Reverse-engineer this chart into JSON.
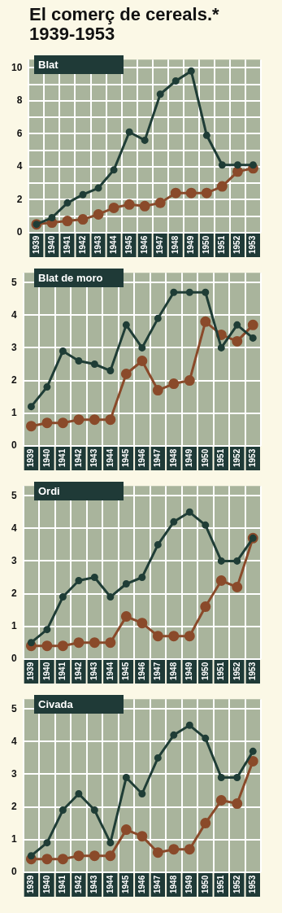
{
  "chart_data": [
    {
      "type": "line",
      "title": "El comerç de cereals.* 1939-1953",
      "subtitle": "Blat",
      "categories": [
        "1939",
        "1940",
        "1941",
        "1942",
        "1943",
        "1944",
        "1945",
        "1946",
        "1947",
        "1948",
        "1949",
        "1950",
        "1951",
        "1952",
        "1953"
      ],
      "series": [
        {
          "color": "#1f3d36",
          "values": [
            0.5,
            0.9,
            1.8,
            2.3,
            2.7,
            3.8,
            6.1,
            5.6,
            8.4,
            9.2,
            9.8,
            5.9,
            4.1,
            4.1,
            4.1
          ]
        },
        {
          "color": "#8a4a2a",
          "values": [
            0.5,
            0.6,
            0.7,
            0.8,
            1.1,
            1.5,
            1.7,
            1.6,
            1.8,
            2.4,
            2.4,
            2.4,
            2.8,
            3.7,
            3.9
          ]
        }
      ],
      "ylim": [
        0,
        10.5
      ],
      "yticks": [
        0,
        {
          "value": 1,
          "label": null
        },
        2,
        {
          "value": 3,
          "label": null
        },
        4,
        {
          "value": 5,
          "label": null
        },
        6,
        {
          "value": 7,
          "label": null
        },
        8,
        {
          "value": 9,
          "label": null
        },
        10
      ],
      "grid": true,
      "marker": "circle"
    },
    {
      "type": "line",
      "subtitle": "Blat de moro",
      "categories": [
        "1939",
        "1940",
        "1941",
        "1942",
        "1943",
        "1944",
        "1945",
        "1946",
        "1947",
        "1948",
        "1949",
        "1950",
        "1951",
        "1952",
        "1953"
      ],
      "series": [
        {
          "color": "#1f3d36",
          "values": [
            1.2,
            1.8,
            2.9,
            2.6,
            2.5,
            2.3,
            3.7,
            3.0,
            3.9,
            4.7,
            4.7,
            4.7,
            3.0,
            3.7,
            3.3
          ]
        },
        {
          "color": "#8a4a2a",
          "values": [
            0.6,
            0.7,
            0.7,
            0.8,
            0.8,
            0.8,
            2.2,
            2.6,
            1.7,
            1.9,
            2.0,
            3.8,
            3.4,
            3.2,
            3.7
          ]
        }
      ],
      "ylim": [
        0,
        5.3
      ],
      "yticks": [
        0,
        1,
        2,
        3,
        4,
        5
      ],
      "grid": true,
      "marker": "circle"
    },
    {
      "type": "line",
      "subtitle": "Ordi",
      "categories": [
        "1939",
        "1940",
        "1941",
        "1942",
        "1943",
        "1944",
        "1945",
        "1946",
        "1947",
        "1948",
        "1949",
        "1950",
        "1951",
        "1952",
        "1953"
      ],
      "series": [
        {
          "color": "#1f3d36",
          "values": [
            0.5,
            0.9,
            1.9,
            2.4,
            2.5,
            1.9,
            2.3,
            2.5,
            3.5,
            4.2,
            4.5,
            4.1,
            3.0,
            3.0,
            3.7
          ]
        },
        {
          "color": "#8a4a2a",
          "values": [
            0.4,
            0.4,
            0.4,
            0.5,
            0.5,
            0.5,
            1.3,
            1.1,
            0.7,
            0.7,
            0.7,
            1.6,
            2.4,
            2.2,
            3.7
          ]
        }
      ],
      "ylim": [
        0,
        5.3
      ],
      "yticks": [
        0,
        1,
        2,
        3,
        4,
        5
      ],
      "grid": true,
      "marker": "circle"
    },
    {
      "type": "line",
      "subtitle": "Civada",
      "categories": [
        "1939",
        "1940",
        "1941",
        "1942",
        "1943",
        "1944",
        "1945",
        "1946",
        "1947",
        "1948",
        "1949",
        "1950",
        "1951",
        "1952",
        "1953"
      ],
      "series": [
        {
          "color": "#1f3d36",
          "values": [
            0.5,
            0.9,
            1.9,
            2.4,
            1.9,
            0.9,
            2.9,
            2.4,
            3.5,
            4.2,
            4.5,
            4.1,
            2.9,
            2.9,
            3.7
          ]
        },
        {
          "color": "#8a4a2a",
          "values": [
            0.4,
            0.4,
            0.4,
            0.5,
            0.5,
            0.5,
            1.3,
            1.1,
            0.6,
            0.7,
            0.7,
            1.5,
            2.2,
            2.1,
            3.4
          ]
        }
      ],
      "ylim": [
        0,
        5.3
      ],
      "yticks": [
        0,
        1,
        2,
        3,
        4,
        5
      ],
      "grid": true,
      "marker": "circle"
    }
  ]
}
